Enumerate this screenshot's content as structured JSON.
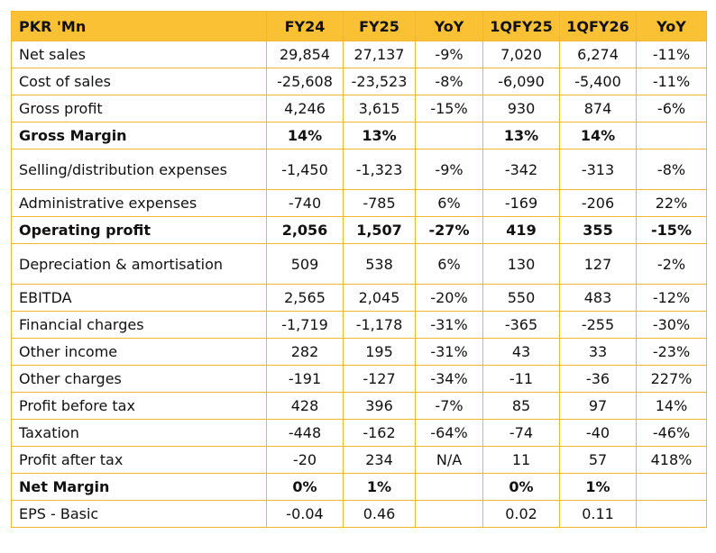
{
  "table": {
    "header": [
      "PKR 'Mn",
      "FY24",
      "FY25",
      "YoY",
      "1QFY25",
      "1QFY26",
      "YoY"
    ],
    "rows": [
      {
        "cells": [
          "Net sales",
          "29,854",
          "27,137",
          "-9%",
          "7,020",
          "6,274",
          "-11%"
        ]
      },
      {
        "cells": [
          "Cost of sales",
          "-25,608",
          "-23,523",
          "-8%",
          "-6,090",
          "-5,400",
          "-11%"
        ]
      },
      {
        "cells": [
          "Gross profit",
          "4,246",
          "3,615",
          "-15%",
          "930",
          "874",
          "-6%"
        ]
      },
      {
        "cells": [
          "Gross Margin",
          "14%",
          "13%",
          null,
          "13%",
          "14%",
          null
        ],
        "bold": true
      },
      {
        "cells": [
          "Selling/distribution expenses",
          "-1,450",
          "-1,323",
          "-9%",
          "-342",
          "-313",
          "-8%"
        ],
        "tall": true
      },
      {
        "cells": [
          "Administrative expenses",
          "-740",
          "-785",
          "6%",
          "-169",
          "-206",
          "22%"
        ]
      },
      {
        "cells": [
          "Operating profit",
          "2,056",
          "1,507",
          "-27%",
          "419",
          "355",
          "-15%"
        ],
        "bold": true
      },
      {
        "cells": [
          "Depreciation & amortisation",
          "509",
          "538",
          "6%",
          "130",
          "127",
          "-2%"
        ],
        "tall": true
      },
      {
        "cells": [
          "EBITDA",
          "2,565",
          "2,045",
          "-20%",
          "550",
          "483",
          "-12%"
        ]
      },
      {
        "cells": [
          "Financial charges",
          "-1,719",
          "-1,178",
          "-31%",
          "-365",
          "-255",
          "-30%"
        ]
      },
      {
        "cells": [
          "Other income",
          "282",
          "195",
          "-31%",
          "43",
          "33",
          "-23%"
        ]
      },
      {
        "cells": [
          "Other charges",
          "-191",
          "-127",
          "-34%",
          "-11",
          "-36",
          "227%"
        ]
      },
      {
        "cells": [
          "Profit before tax",
          "428",
          "396",
          "-7%",
          "85",
          "97",
          "14%"
        ]
      },
      {
        "cells": [
          "Taxation",
          "-448",
          "-162",
          "-64%",
          "-74",
          "-40",
          "-46%"
        ]
      },
      {
        "cells": [
          "Profit after tax",
          "-20",
          "234",
          "N/A",
          "11",
          "57",
          "418%"
        ]
      },
      {
        "cells": [
          "Net Margin",
          "0%",
          "1%",
          null,
          "0%",
          "1%",
          null
        ],
        "bold": true
      },
      {
        "cells": [
          "EPS - Basic",
          "-0.04",
          "0.46",
          null,
          "0.02",
          "0.11",
          null
        ]
      }
    ]
  }
}
